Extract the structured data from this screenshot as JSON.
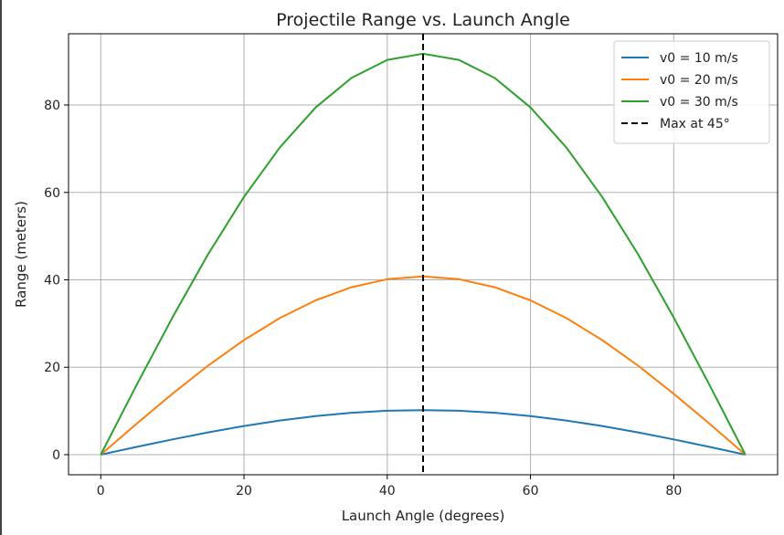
{
  "chart_data": {
    "type": "line",
    "title": "Projectile Range vs. Launch Angle",
    "xlabel": "Launch Angle (degrees)",
    "ylabel": "Range (meters)",
    "xlim": [
      -4.5,
      94.5
    ],
    "ylim": [
      -4.6,
      96.3
    ],
    "xticks": [
      0,
      20,
      40,
      60,
      80
    ],
    "yticks": [
      0,
      20,
      40,
      60,
      80
    ],
    "grid": true,
    "legend_position": "top-right",
    "x": [
      0,
      5,
      10,
      15,
      20,
      25,
      30,
      35,
      40,
      45,
      50,
      55,
      60,
      65,
      70,
      75,
      80,
      85,
      90
    ],
    "series": [
      {
        "name": "v0 = 10 m/s",
        "color": "#1f77b4",
        "values": [
          0,
          1.77,
          3.49,
          5.1,
          6.55,
          7.81,
          8.83,
          9.58,
          10.04,
          10.19,
          10.04,
          9.58,
          8.83,
          7.81,
          6.55,
          5.1,
          3.49,
          1.77,
          0
        ]
      },
      {
        "name": "v0 = 20 m/s",
        "color": "#ff7f0e",
        "values": [
          0,
          7.08,
          13.94,
          20.39,
          26.21,
          31.24,
          35.31,
          38.3,
          40.14,
          40.77,
          40.14,
          38.3,
          35.31,
          31.24,
          26.21,
          20.39,
          13.94,
          7.08,
          0
        ]
      },
      {
        "name": "v0 = 30 m/s",
        "color": "#2ca02c",
        "values": [
          0,
          15.93,
          31.38,
          45.87,
          58.97,
          70.28,
          79.44,
          86.18,
          90.32,
          91.74,
          90.32,
          86.18,
          79.44,
          70.28,
          58.97,
          45.87,
          31.38,
          15.93,
          0
        ]
      }
    ],
    "vline": {
      "x": 45,
      "label": "Max at 45°",
      "color": "#000000",
      "style": "dashed"
    }
  }
}
